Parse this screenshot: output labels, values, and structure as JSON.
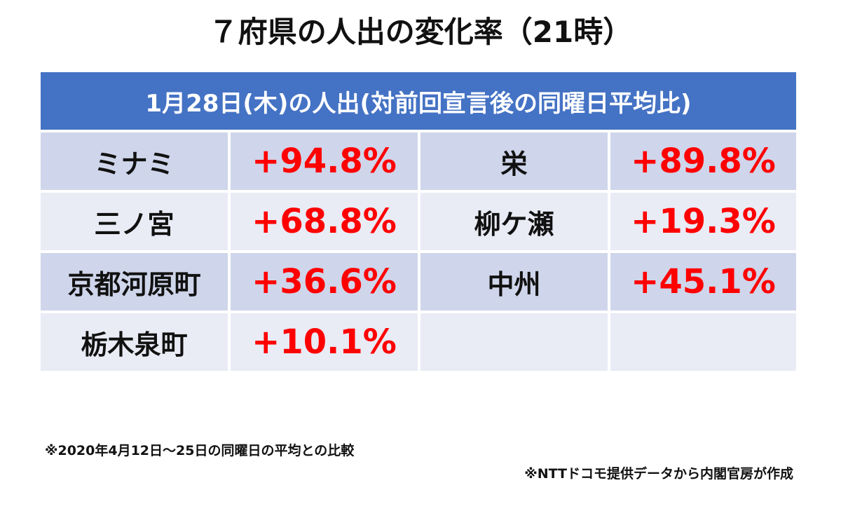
{
  "title": "７府県の人出の変化率（21時）",
  "table": {
    "header": "1月28日(木)の人出(対前回宣言後の同曜日平均比)",
    "rows": [
      [
        "ミナミ",
        "+94.8%",
        "栄",
        "+89.8%"
      ],
      [
        "三ノ宮",
        "+68.8%",
        "柳ケ瀬",
        "+19.3%"
      ],
      [
        "京都河原町",
        "+36.6%",
        "中州",
        "+45.1%"
      ],
      [
        "栃木泉町",
        "+10.1%"
      ]
    ]
  },
  "notes": [
    "※2020年4月12日～25日の同曜日の平均との比較",
    "※NTTドコモ提供データから内閣官房が作成"
  ]
}
